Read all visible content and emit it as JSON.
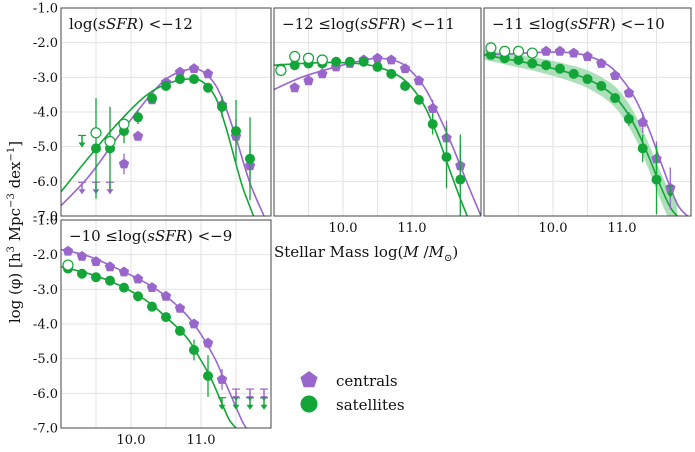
{
  "figure": {
    "ylabel_main": "log (φ) [h",
    "ylabel_sup1": "3",
    "ylabel_mid": " Mpc",
    "ylabel_sup2": "−3",
    "ylabel_end": " dex",
    "ylabel_sup3": "−1",
    "ylabel_close": "]",
    "xlabel_main": "Stellar Mass log(",
    "xlabel_M": "M",
    "xlabel_slash": " /",
    "xlabel_Msun": "M",
    "xlabel_sun": "⊙",
    "xlabel_close": ")",
    "legend": {
      "centrals": "centrals",
      "satellites": "satellites"
    }
  },
  "colors": {
    "centrals": "#9966cc",
    "satellites": "#13a538",
    "grid": "#e3e3e3",
    "band": "#8fd6a0"
  },
  "chart_data": [
    {
      "type": "scatter",
      "panel": "top-left",
      "title_pre": "log(",
      "title_var": "sSFR",
      "title_post": ") <−12",
      "xlim": [
        9.0,
        12.0
      ],
      "ylim": [
        -7.0,
        -1.0
      ],
      "yticklabels": [
        "-1.0",
        "-2.0",
        "-3.0",
        "-4.0",
        "-5.0",
        "-6.0",
        "-7.0"
      ],
      "xticklabels": [],
      "series": [
        {
          "name": "centrals",
          "marker": "pentagon",
          "x": [
            9.3,
            9.5,
            9.7,
            9.9,
            10.1,
            10.3,
            10.5,
            10.7,
            10.9,
            11.1,
            11.3,
            11.5,
            11.7
          ],
          "y": [
            -6.2,
            -6.2,
            -6.2,
            -5.5,
            -4.7,
            -3.65,
            -3.15,
            -2.85,
            -2.75,
            -2.9,
            -3.8,
            -4.7,
            -5.55
          ],
          "yerr": [
            0,
            0,
            0,
            0.3,
            0.12,
            0.08,
            0.05,
            0.05,
            0.05,
            0.08,
            0.25,
            0.5,
            0.6
          ],
          "upper": [
            true,
            true,
            true,
            false,
            false,
            false,
            false,
            false,
            false,
            false,
            false,
            false,
            false
          ]
        },
        {
          "name": "satellites",
          "marker": "circle",
          "x": [
            9.3,
            9.5,
            9.7,
            9.9,
            10.1,
            10.3,
            10.5,
            10.7,
            10.9,
            11.1,
            11.3,
            11.5,
            11.7
          ],
          "y": [
            -4.85,
            -5.05,
            -5.05,
            -4.55,
            -4.15,
            -3.6,
            -3.25,
            -3.05,
            -3.05,
            -3.3,
            -3.85,
            -4.55,
            -5.35
          ],
          "yerr": [
            0,
            1.45,
            1.2,
            0.35,
            0.2,
            0.12,
            0.08,
            0.06,
            0.06,
            0.1,
            0.3,
            0.9,
            1.2
          ],
          "upper": [
            true,
            false,
            false,
            false,
            false,
            false,
            false,
            false,
            false,
            false,
            false,
            false,
            false
          ],
          "open": [
            {
              "x": 9.5,
              "y": -4.6
            },
            {
              "x": 9.7,
              "y": -4.85
            },
            {
              "x": 9.9,
              "y": -4.35
            }
          ]
        }
      ],
      "fits": {
        "centrals": {
          "x": [
            9.0,
            9.4,
            9.8,
            10.2,
            10.5,
            10.8,
            11.0,
            11.2,
            11.35,
            11.5,
            11.7,
            11.9
          ],
          "y": [
            -6.7,
            -5.85,
            -4.75,
            -3.7,
            -3.05,
            -2.78,
            -2.8,
            -3.2,
            -3.85,
            -4.75,
            -6.05,
            -7.0
          ]
        },
        "satellites": {
          "x": [
            9.0,
            9.4,
            9.8,
            10.2,
            10.5,
            10.8,
            11.0,
            11.2,
            11.35,
            11.5,
            11.6,
            11.75
          ],
          "y": [
            -6.3,
            -5.3,
            -4.35,
            -3.55,
            -3.2,
            -3.05,
            -3.1,
            -3.55,
            -4.4,
            -5.5,
            -6.2,
            -7.0
          ]
        }
      }
    },
    {
      "type": "scatter",
      "panel": "top-middle",
      "title_pre": "−12 ≤log(",
      "title_var": "sSFR",
      "title_post": ") <−11",
      "xlim": [
        9.0,
        12.0
      ],
      "ylim": [
        -7.0,
        -1.0
      ],
      "yticklabels": [],
      "xticklabels": [
        "10.0",
        "11.0"
      ],
      "xticks": [
        10.0,
        11.0
      ],
      "series": [
        {
          "name": "centrals",
          "marker": "pentagon",
          "x": [
            9.3,
            9.5,
            9.7,
            9.9,
            10.1,
            10.3,
            10.5,
            10.7,
            10.9,
            11.1,
            11.3,
            11.5,
            11.7
          ],
          "y": [
            -3.3,
            -3.1,
            -2.9,
            -2.7,
            -2.6,
            -2.5,
            -2.45,
            -2.5,
            -2.75,
            -3.1,
            -3.9,
            -4.75,
            -5.55
          ],
          "yerr": [
            0.1,
            0.08,
            0.06,
            0.05,
            0.05,
            0.04,
            0.04,
            0.05,
            0.06,
            0.1,
            0.25,
            0.5,
            0.6
          ],
          "upper": [
            false,
            false,
            false,
            false,
            false,
            false,
            false,
            false,
            false,
            false,
            false,
            false,
            false
          ]
        },
        {
          "name": "satellites",
          "marker": "circle",
          "x": [
            9.1,
            9.3,
            9.5,
            9.7,
            9.9,
            10.1,
            10.3,
            10.5,
            10.7,
            10.9,
            11.1,
            11.3,
            11.5,
            11.7
          ],
          "y": [
            -2.75,
            -2.65,
            -2.6,
            -2.6,
            -2.55,
            -2.55,
            -2.55,
            -2.7,
            -2.9,
            -3.25,
            -3.65,
            -4.35,
            -5.3,
            -5.95
          ],
          "yerr": [
            0,
            0.05,
            0.05,
            0.05,
            0.05,
            0.05,
            0.05,
            0.05,
            0.06,
            0.08,
            0.12,
            0.3,
            0.9,
            1.3
          ],
          "upper": [
            false,
            false,
            false,
            false,
            false,
            false,
            false,
            false,
            false,
            false,
            false,
            false,
            false,
            false
          ],
          "open": [
            {
              "x": 9.1,
              "y": -2.8
            },
            {
              "x": 9.3,
              "y": -2.4
            },
            {
              "x": 9.5,
              "y": -2.45
            },
            {
              "x": 9.7,
              "y": -2.5
            }
          ]
        }
      ],
      "fits": {
        "centrals": {
          "x": [
            9.0,
            9.4,
            9.8,
            10.2,
            10.5,
            10.8,
            11.0,
            11.2,
            11.4,
            11.6,
            11.8,
            12.0
          ],
          "y": [
            -3.35,
            -3.0,
            -2.75,
            -2.55,
            -2.45,
            -2.55,
            -2.85,
            -3.35,
            -4.15,
            -5.05,
            -6.05,
            -7.0
          ]
        },
        "satellites": {
          "x": [
            9.0,
            9.4,
            9.8,
            10.2,
            10.5,
            10.8,
            11.0,
            11.2,
            11.4,
            11.55,
            11.7,
            11.8
          ],
          "y": [
            -2.65,
            -2.6,
            -2.57,
            -2.6,
            -2.7,
            -2.95,
            -3.3,
            -3.9,
            -4.85,
            -5.7,
            -6.5,
            -7.0
          ]
        }
      }
    },
    {
      "type": "scatter",
      "panel": "top-right",
      "title_pre": "−11 ≤log(",
      "title_var": "sSFR",
      "title_post": ") <−10",
      "xlim": [
        9.0,
        12.0
      ],
      "ylim": [
        -7.0,
        -1.0
      ],
      "yticklabels": [],
      "xticklabels": [
        "10.0",
        "11.0"
      ],
      "xticks": [
        10.0,
        11.0
      ],
      "series": [
        {
          "name": "centrals",
          "marker": "pentagon",
          "x": [
            9.1,
            9.3,
            9.5,
            9.7,
            9.9,
            10.1,
            10.3,
            10.5,
            10.7,
            10.9,
            11.1,
            11.3,
            11.5,
            11.7
          ],
          "y": [
            -2.35,
            -2.35,
            -2.3,
            -2.3,
            -2.25,
            -2.25,
            -2.3,
            -2.4,
            -2.6,
            -2.95,
            -3.45,
            -4.3,
            -5.35,
            -6.2
          ],
          "yerr": [
            0.05,
            0.05,
            0.04,
            0.04,
            0.04,
            0.04,
            0.04,
            0.05,
            0.06,
            0.08,
            0.15,
            0.3,
            0.5,
            0.6
          ],
          "upper": [
            false,
            false,
            false,
            false,
            false,
            false,
            false,
            false,
            false,
            false,
            false,
            false,
            false,
            false
          ]
        },
        {
          "name": "satellites",
          "marker": "circle",
          "x": [
            9.1,
            9.3,
            9.5,
            9.7,
            9.9,
            10.1,
            10.3,
            10.5,
            10.7,
            10.9,
            11.1,
            11.3,
            11.5,
            11.7
          ],
          "y": [
            -2.35,
            -2.45,
            -2.5,
            -2.6,
            -2.65,
            -2.75,
            -2.9,
            -3.05,
            -3.25,
            -3.6,
            -4.2,
            -5.05,
            -5.95,
            -6.3
          ],
          "yerr": [
            0,
            0.05,
            0.05,
            0.05,
            0.05,
            0.05,
            0.06,
            0.06,
            0.08,
            0.1,
            0.2,
            0.4,
            1.0,
            0
          ],
          "upper": [
            false,
            false,
            false,
            false,
            false,
            false,
            false,
            false,
            false,
            false,
            false,
            false,
            false,
            true
          ],
          "open": [
            {
              "x": 9.1,
              "y": -2.15
            },
            {
              "x": 9.3,
              "y": -2.25
            },
            {
              "x": 9.5,
              "y": -2.25
            },
            {
              "x": 9.7,
              "y": -2.3
            }
          ]
        }
      ],
      "fits": {
        "centrals": {
          "x": [
            9.0,
            9.4,
            9.8,
            10.2,
            10.5,
            10.8,
            11.0,
            11.2,
            11.4,
            11.6,
            11.8,
            11.95
          ],
          "y": [
            -2.35,
            -2.32,
            -2.28,
            -2.28,
            -2.38,
            -2.65,
            -3.05,
            -3.65,
            -4.55,
            -5.65,
            -6.65,
            -7.0
          ]
        },
        "satellites": {
          "x": [
            9.0,
            9.4,
            9.8,
            10.2,
            10.5,
            10.8,
            11.0,
            11.2,
            11.4,
            11.55,
            11.7,
            11.8
          ],
          "y": [
            -2.35,
            -2.5,
            -2.65,
            -2.85,
            -3.05,
            -3.4,
            -3.8,
            -4.45,
            -5.35,
            -6.1,
            -6.75,
            -7.0
          ]
        },
        "satellites_band": 0.35
      }
    },
    {
      "type": "scatter",
      "panel": "bottom-left",
      "title_pre": "−10 ≤log(",
      "title_var": "sSFR",
      "title_post": ") <−9",
      "xlim": [
        9.0,
        12.0
      ],
      "ylim": [
        -7.0,
        -1.0
      ],
      "yticklabels": [
        "-1.0",
        "-2.0",
        "-3.0",
        "-4.0",
        "-5.0",
        "-6.0",
        "-7.0"
      ],
      "xticklabels": [
        "10.0",
        "11.0"
      ],
      "xticks": [
        10.0,
        11.0
      ],
      "series": [
        {
          "name": "centrals",
          "marker": "pentagon",
          "x": [
            9.1,
            9.3,
            9.5,
            9.7,
            9.9,
            10.1,
            10.3,
            10.5,
            10.7,
            10.9,
            11.1,
            11.3,
            11.5,
            11.7,
            11.9
          ],
          "y": [
            -1.9,
            -2.05,
            -2.2,
            -2.35,
            -2.5,
            -2.7,
            -2.95,
            -3.2,
            -3.55,
            -4.0,
            -4.55,
            -5.6,
            -6.05,
            -6.05,
            -6.05
          ],
          "yerr": [
            0.04,
            0.04,
            0.04,
            0.04,
            0.04,
            0.05,
            0.05,
            0.06,
            0.08,
            0.1,
            0.15,
            0.3,
            0,
            0,
            0
          ],
          "upper": [
            false,
            false,
            false,
            false,
            false,
            false,
            false,
            false,
            false,
            false,
            false,
            false,
            true,
            true,
            true
          ]
        },
        {
          "name": "satellites",
          "marker": "circle",
          "x": [
            9.1,
            9.3,
            9.5,
            9.7,
            9.9,
            10.1,
            10.3,
            10.5,
            10.7,
            10.9,
            11.1,
            11.3,
            11.5,
            11.7,
            11.9
          ],
          "y": [
            -2.4,
            -2.55,
            -2.65,
            -2.75,
            -2.95,
            -3.2,
            -3.5,
            -3.8,
            -4.2,
            -4.75,
            -5.5,
            -6.3,
            -6.3,
            -6.3,
            -6.3
          ],
          "yerr": [
            0.04,
            0.04,
            0.04,
            0.05,
            0.05,
            0.06,
            0.07,
            0.08,
            0.12,
            0.3,
            0.6,
            0,
            0,
            0,
            0
          ],
          "upper": [
            false,
            false,
            false,
            false,
            false,
            false,
            false,
            false,
            false,
            false,
            false,
            true,
            true,
            true,
            true
          ],
          "open": [
            {
              "x": 9.1,
              "y": -2.3
            }
          ]
        }
      ],
      "fits": {
        "centrals": {
          "x": [
            9.0,
            9.4,
            9.8,
            10.2,
            10.5,
            10.8,
            11.0,
            11.2,
            11.35,
            11.5,
            11.6,
            11.65
          ],
          "y": [
            -1.85,
            -2.05,
            -2.4,
            -2.8,
            -3.2,
            -3.75,
            -4.3,
            -5.0,
            -5.7,
            -6.4,
            -6.85,
            -7.0
          ]
        },
        "satellites": {
          "x": [
            9.0,
            9.4,
            9.8,
            10.2,
            10.5,
            10.8,
            11.0,
            11.15,
            11.3,
            11.4,
            11.5
          ],
          "y": [
            -2.35,
            -2.55,
            -2.85,
            -3.3,
            -3.8,
            -4.4,
            -5.05,
            -5.6,
            -6.3,
            -6.75,
            -7.0
          ]
        }
      }
    }
  ]
}
